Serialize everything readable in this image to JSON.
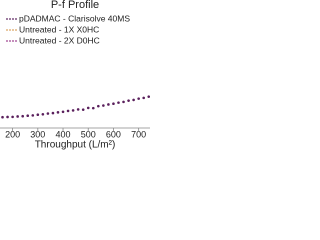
{
  "chart_data": {
    "type": "scatter",
    "title": "P-f Profile",
    "x_label": "Throughput (L/m²)",
    "x": [
      160,
      180,
      200,
      220,
      240,
      260,
      280,
      300,
      320,
      340,
      360,
      380,
      400,
      420,
      440,
      460,
      480,
      500,
      520,
      540,
      560,
      580,
      600,
      620,
      640,
      660,
      680,
      700,
      720,
      740
    ],
    "series": [
      {
        "name": "pDADMAC - Clarisolve 40MS",
        "color": "#5a1f5c",
        "values": [
          1.0,
          1.02,
          1.03,
          1.07,
          1.09,
          1.14,
          1.17,
          1.23,
          1.27,
          1.34,
          1.38,
          1.45,
          1.5,
          1.58,
          1.63,
          1.72,
          1.7,
          1.86,
          1.84,
          2.02,
          2.08,
          2.18,
          2.25,
          2.35,
          2.42,
          2.53,
          2.6,
          2.72,
          2.79,
          2.9
        ]
      },
      {
        "name": "Untreated - 1X X0HC",
        "color": "#d9a25e",
        "values": [
          null,
          null,
          null,
          null,
          null,
          null,
          null,
          null,
          null,
          null,
          null,
          null,
          null,
          null,
          null,
          null,
          null,
          null,
          null,
          null,
          null,
          null,
          null,
          null,
          null,
          null,
          null,
          null,
          null,
          null
        ]
      },
      {
        "name": "Untreated - 2X D0HC",
        "color": "#9c3d8c",
        "values": [
          null,
          null,
          null,
          null,
          null,
          null,
          null,
          null,
          null,
          null,
          null,
          null,
          null,
          null,
          null,
          null,
          null,
          null,
          null,
          null,
          null,
          null,
          null,
          null,
          null,
          null,
          null,
          null,
          null,
          null
        ]
      }
    ],
    "xlim": [
      150,
      745
    ],
    "xticks": [
      200,
      300,
      400,
      500,
      600,
      700
    ],
    "ylim": [
      0,
      10
    ]
  }
}
